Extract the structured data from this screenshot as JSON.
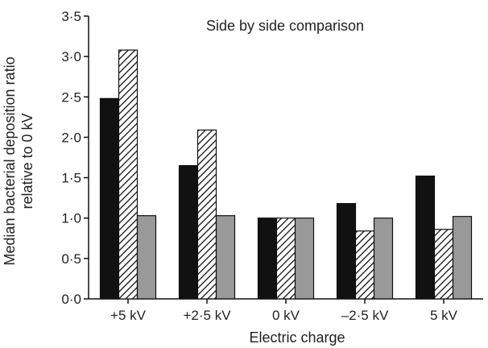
{
  "chart_data": {
    "type": "bar",
    "title": "Side by side comparison",
    "xlabel": "Electric charge",
    "ylabel_lines": [
      "Median bacterial deposition ratio",
      "relative to 0 kV"
    ],
    "categories": [
      "+5 kV",
      "+2·5 kV",
      "0 kV",
      "–2·5 kV",
      "5 kV"
    ],
    "series": [
      {
        "values": [
          2.48,
          1.65,
          1.0,
          1.18,
          1.52
        ],
        "fill": "#111111",
        "pattern": "solid"
      },
      {
        "values": [
          3.08,
          2.09,
          1.0,
          0.84,
          0.86
        ],
        "fill": "#ffffff",
        "pattern": "hatch"
      },
      {
        "values": [
          1.03,
          1.03,
          1.0,
          1.0,
          1.02
        ],
        "fill": "#999999",
        "pattern": "solid"
      }
    ],
    "ylim": [
      0,
      3.5
    ],
    "yticks": [
      {
        "value": 0.0,
        "label": "0·0"
      },
      {
        "value": 0.5,
        "label": "0·5"
      },
      {
        "value": 1.0,
        "label": "1·0"
      },
      {
        "value": 1.5,
        "label": "1·5"
      },
      {
        "value": 2.0,
        "label": "2·0"
      },
      {
        "value": 2.5,
        "label": "2·5"
      },
      {
        "value": 3.0,
        "label": "3·0"
      },
      {
        "value": 3.5,
        "label": "3·5"
      }
    ],
    "grid": false,
    "legend": "none"
  }
}
